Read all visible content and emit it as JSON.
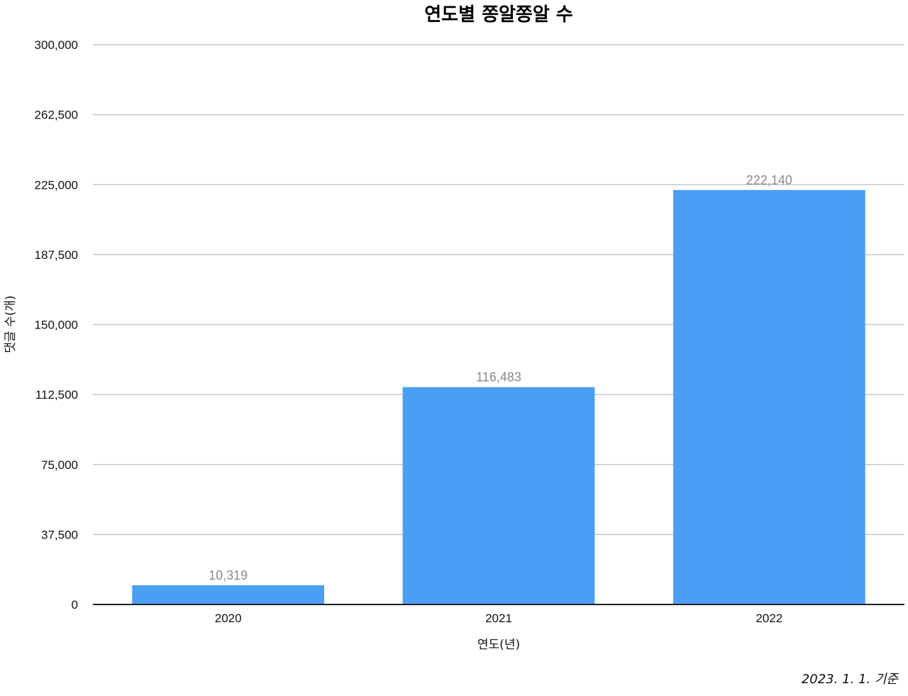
{
  "chart_data": {
    "type": "bar",
    "title": "연도별 쫑알쫑알 수",
    "xlabel": "연도(년)",
    "ylabel": "댓글 수(개)",
    "categories": [
      "2020",
      "2021",
      "2022"
    ],
    "values": [
      10319,
      116483,
      222140
    ],
    "data_labels": [
      "10,319",
      "116,483",
      "222,140"
    ],
    "ylim": [
      0,
      300000
    ],
    "yticks": [
      0,
      37500,
      75000,
      112500,
      150000,
      187500,
      225000,
      262500,
      300000
    ],
    "ytick_labels": [
      "0",
      "37,500",
      "75,000",
      "112,500",
      "150,000",
      "187,500",
      "225,000",
      "262,500",
      "300,000"
    ],
    "grid": true,
    "legend": "none",
    "bar_color": "#4a9ff5",
    "data_label_color": "#8a8a8a",
    "grid_color": "#c8c8c8"
  },
  "footnote": "2023. 1. 1. 기준"
}
